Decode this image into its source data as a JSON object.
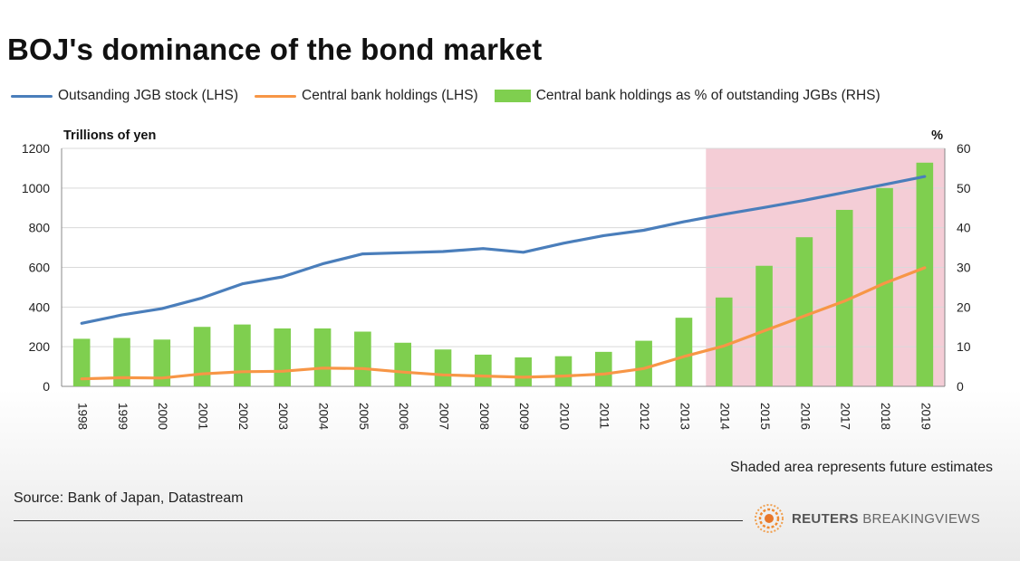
{
  "title": "BOJ's dominance of the bond market",
  "legend": {
    "series1": "Outsanding JGB stock (LHS)",
    "series2": "Central bank holdings (LHS)",
    "series3": "Central bank holdings as % of outstanding JGBs (RHS)"
  },
  "note": "Shaded area represents future estimates",
  "source": "Source: Bank of Japan, Datastream",
  "brand": {
    "name1": "REUTERS",
    "name2": "BREAKINGVIEWS"
  },
  "colors": {
    "jgb": "#4a7ebb",
    "cb": "#f79646",
    "pct": "#7fcf4f",
    "shade": "#f4cdd6",
    "grid": "#d9d9d9"
  },
  "chart_data": {
    "type": "bar",
    "categories": [
      "1998",
      "1999",
      "2000",
      "2001",
      "2002",
      "2003",
      "2004",
      "2005",
      "2006",
      "2007",
      "2008",
      "2009",
      "2010",
      "2011",
      "2012",
      "2013",
      "2014",
      "2015",
      "2016",
      "2017",
      "2018",
      "2019"
    ],
    "ylabel_left": "Trillions of yen",
    "ylabel_right": "%",
    "ylim_left": [
      0,
      1200
    ],
    "ylim_right": [
      0,
      60
    ],
    "yticks_left": [
      0,
      200,
      400,
      600,
      800,
      1000,
      1200
    ],
    "yticks_right": [
      0,
      10,
      20,
      30,
      40,
      50,
      60
    ],
    "grid": true,
    "shaded_region": {
      "from": "2014",
      "to": "2019",
      "label": "future estimates"
    },
    "series": [
      {
        "name": "Central bank holdings as % of outstanding JGBs (RHS)",
        "type": "bar",
        "axis": "right",
        "values": [
          12,
          12.2,
          11.8,
          15,
          15.6,
          14.6,
          14.6,
          13.8,
          11,
          9.3,
          8,
          7.3,
          7.6,
          8.7,
          11.5,
          17.3,
          22.4,
          30.4,
          37.6,
          44.5,
          50,
          56.4
        ]
      },
      {
        "name": "Outsanding JGB stock (LHS)",
        "type": "line",
        "axis": "left",
        "values": [
          318,
          360,
          392,
          446,
          517,
          552,
          618,
          668,
          674,
          680,
          695,
          676,
          722,
          760,
          787,
          830,
          868,
          902,
          938,
          978,
          1018,
          1058
        ]
      },
      {
        "name": "Central bank holdings (LHS)",
        "type": "line",
        "axis": "left",
        "values": [
          38,
          44,
          42,
          63,
          74,
          76,
          92,
          90,
          72,
          58,
          52,
          46,
          52,
          62,
          90,
          150,
          204,
          280,
          355,
          430,
          520,
          598
        ]
      }
    ]
  }
}
